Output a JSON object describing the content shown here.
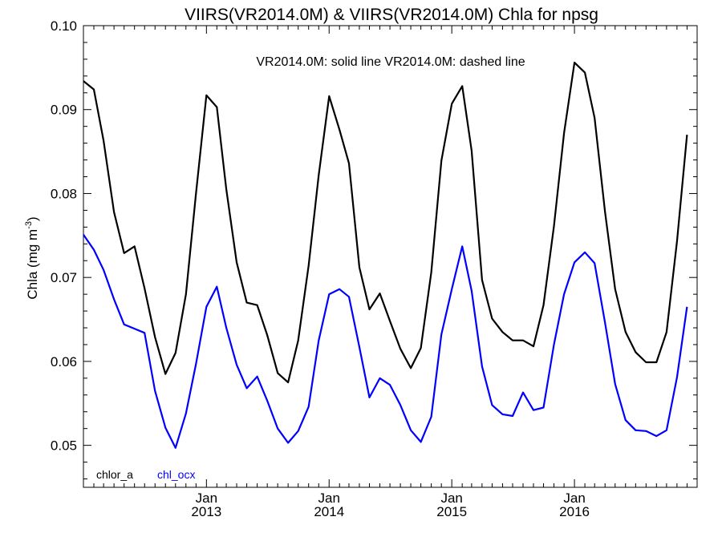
{
  "chart_data": {
    "type": "line",
    "title": "VIIRS(VR2014.0M) & VIIRS(VR2014.0M)  Chla for npsg",
    "subtitle": "VR2014.0M: solid line   VR2014.0M: dashed line",
    "ylabel": "Chla (mg m",
    "ylabel_sup": "-3",
    "ylabel_close": ")",
    "ylim": [
      0.045,
      0.1
    ],
    "yticks": [
      0.05,
      0.06,
      0.07,
      0.08,
      0.09,
      0.1
    ],
    "ytick_labels": [
      "0.05",
      "0.06",
      "0.07",
      "0.08",
      "0.09",
      "0.10"
    ],
    "xlim": [
      "2012-01-01",
      "2016-12-31"
    ],
    "xticks": [
      {
        "date": "2013-01-01",
        "month": "Jan",
        "year": "2013"
      },
      {
        "date": "2014-01-01",
        "month": "Jan",
        "year": "2014"
      },
      {
        "date": "2015-01-01",
        "month": "Jan",
        "year": "2015"
      },
      {
        "date": "2016-01-01",
        "month": "Jan",
        "year": "2016"
      }
    ],
    "grid": false,
    "legend_position": "bottom-left",
    "series": [
      {
        "name": "chlor_a",
        "color": "#000000",
        "x": [
          "2012-01-01",
          "2012-02-01",
          "2012-03-01",
          "2012-04-01",
          "2012-05-01",
          "2012-06-01",
          "2012-07-01",
          "2012-08-01",
          "2012-09-01",
          "2012-10-01",
          "2012-11-01",
          "2012-12-01",
          "2013-01-01",
          "2013-02-01",
          "2013-03-01",
          "2013-04-01",
          "2013-05-01",
          "2013-06-01",
          "2013-07-01",
          "2013-08-01",
          "2013-09-01",
          "2013-10-01",
          "2013-11-01",
          "2013-12-01",
          "2014-01-01",
          "2014-02-01",
          "2014-03-01",
          "2014-04-01",
          "2014-05-01",
          "2014-06-01",
          "2014-07-01",
          "2014-08-01",
          "2014-09-01",
          "2014-10-01",
          "2014-11-01",
          "2014-12-01",
          "2015-01-01",
          "2015-02-01",
          "2015-03-01",
          "2015-04-01",
          "2015-05-01",
          "2015-06-01",
          "2015-07-01",
          "2015-08-01",
          "2015-09-01",
          "2015-10-01",
          "2015-11-01",
          "2015-12-01",
          "2016-01-01",
          "2016-02-01",
          "2016-03-01",
          "2016-04-01",
          "2016-05-01",
          "2016-06-01",
          "2016-07-01",
          "2016-08-01",
          "2016-09-01",
          "2016-10-01",
          "2016-11-01",
          "2016-12-01"
        ],
        "values": [
          0.0934,
          0.0924,
          0.0863,
          0.0778,
          0.0729,
          0.0737,
          0.0687,
          0.0629,
          0.0585,
          0.061,
          0.068,
          0.08,
          0.0917,
          0.0903,
          0.0805,
          0.0718,
          0.067,
          0.0667,
          0.0631,
          0.0586,
          0.0575,
          0.0625,
          0.0714,
          0.0822,
          0.0916,
          0.0876,
          0.0836,
          0.0712,
          0.0662,
          0.0681,
          0.0648,
          0.0615,
          0.0592,
          0.0616,
          0.0706,
          0.0839,
          0.0907,
          0.0928,
          0.0851,
          0.0697,
          0.0651,
          0.0635,
          0.0625,
          0.0625,
          0.0618,
          0.0667,
          0.0761,
          0.0872,
          0.0956,
          0.0944,
          0.089,
          0.0778,
          0.0686,
          0.0635,
          0.0611,
          0.0599,
          0.0599,
          0.0635,
          0.0743,
          0.087
        ]
      },
      {
        "name": "chl_ocx",
        "color": "#0000ff",
        "x": [
          "2012-01-01",
          "2012-02-01",
          "2012-03-01",
          "2012-04-01",
          "2012-05-01",
          "2012-06-01",
          "2012-07-01",
          "2012-08-01",
          "2012-09-01",
          "2012-10-01",
          "2012-11-01",
          "2012-12-01",
          "2013-01-01",
          "2013-02-01",
          "2013-03-01",
          "2013-04-01",
          "2013-05-01",
          "2013-06-01",
          "2013-07-01",
          "2013-08-01",
          "2013-09-01",
          "2013-10-01",
          "2013-11-01",
          "2013-12-01",
          "2014-01-01",
          "2014-02-01",
          "2014-03-01",
          "2014-04-01",
          "2014-05-01",
          "2014-06-01",
          "2014-07-01",
          "2014-08-01",
          "2014-09-01",
          "2014-10-01",
          "2014-11-01",
          "2014-12-01",
          "2015-01-01",
          "2015-02-01",
          "2015-03-01",
          "2015-04-01",
          "2015-05-01",
          "2015-06-01",
          "2015-07-01",
          "2015-08-01",
          "2015-09-01",
          "2015-10-01",
          "2015-11-01",
          "2015-12-01",
          "2016-01-01",
          "2016-02-01",
          "2016-03-01",
          "2016-04-01",
          "2016-05-01",
          "2016-06-01",
          "2016-07-01",
          "2016-08-01",
          "2016-09-01",
          "2016-10-01",
          "2016-11-01",
          "2016-12-01"
        ],
        "values": [
          0.0751,
          0.0733,
          0.0709,
          0.0674,
          0.0644,
          0.0639,
          0.0634,
          0.0565,
          0.0521,
          0.0497,
          0.0538,
          0.0597,
          0.0665,
          0.0689,
          0.064,
          0.0596,
          0.0568,
          0.0582,
          0.0553,
          0.052,
          0.0503,
          0.0517,
          0.0546,
          0.0625,
          0.068,
          0.0686,
          0.0677,
          0.0617,
          0.0557,
          0.058,
          0.0572,
          0.0548,
          0.0518,
          0.0504,
          0.0534,
          0.0632,
          0.0686,
          0.0737,
          0.0684,
          0.0594,
          0.0548,
          0.0537,
          0.0535,
          0.0563,
          0.0542,
          0.0545,
          0.062,
          0.068,
          0.0718,
          0.073,
          0.0717,
          0.0646,
          0.0573,
          0.053,
          0.0518,
          0.0517,
          0.0511,
          0.0518,
          0.0581,
          0.0665
        ]
      }
    ],
    "legend": [
      {
        "label": "chlor_a",
        "color": "#000000"
      },
      {
        "label": "chl_ocx",
        "color": "#0000ff"
      }
    ]
  }
}
